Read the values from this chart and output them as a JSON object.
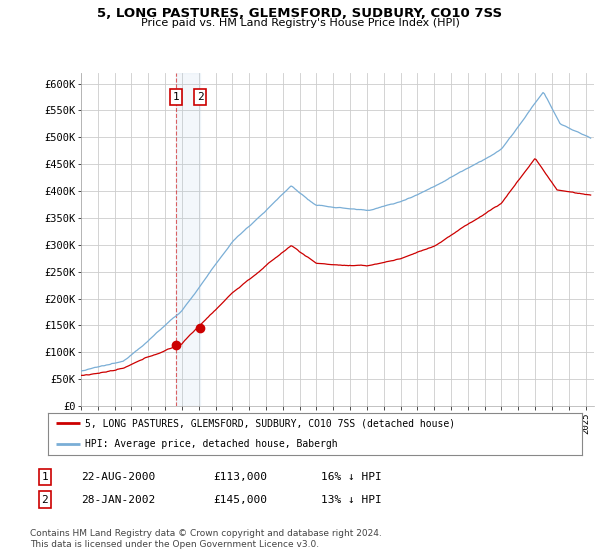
{
  "title": "5, LONG PASTURES, GLEMSFORD, SUDBURY, CO10 7SS",
  "subtitle": "Price paid vs. HM Land Registry's House Price Index (HPI)",
  "ylabel_ticks": [
    "£0",
    "£50K",
    "£100K",
    "£150K",
    "£200K",
    "£250K",
    "£300K",
    "£350K",
    "£400K",
    "£450K",
    "£500K",
    "£550K",
    "£600K"
  ],
  "ytick_values": [
    0,
    50000,
    100000,
    150000,
    200000,
    250000,
    300000,
    350000,
    400000,
    450000,
    500000,
    550000,
    600000
  ],
  "ylim": [
    0,
    620000
  ],
  "xlim_start": 1995.0,
  "xlim_end": 2025.5,
  "transaction1": {
    "date_x": 2000.64,
    "price": 113000,
    "label": "1"
  },
  "transaction2": {
    "date_x": 2002.08,
    "price": 145000,
    "label": "2"
  },
  "legend_line1": "5, LONG PASTURES, GLEMSFORD, SUDBURY, CO10 7SS (detached house)",
  "legend_line2": "HPI: Average price, detached house, Babergh",
  "table_row1": [
    "1",
    "22-AUG-2000",
    "£113,000",
    "16% ↓ HPI"
  ],
  "table_row2": [
    "2",
    "28-JAN-2002",
    "£145,000",
    "13% ↓ HPI"
  ],
  "footnote": "Contains HM Land Registry data © Crown copyright and database right 2024.\nThis data is licensed under the Open Government Licence v3.0.",
  "line_color_red": "#cc0000",
  "line_color_blue": "#7aaed6",
  "vline_color_red": "#cc0000",
  "vline_color_blue": "#b0cfe8",
  "background_color": "#ffffff",
  "plot_bg_color": "#ffffff",
  "grid_color": "#cccccc"
}
